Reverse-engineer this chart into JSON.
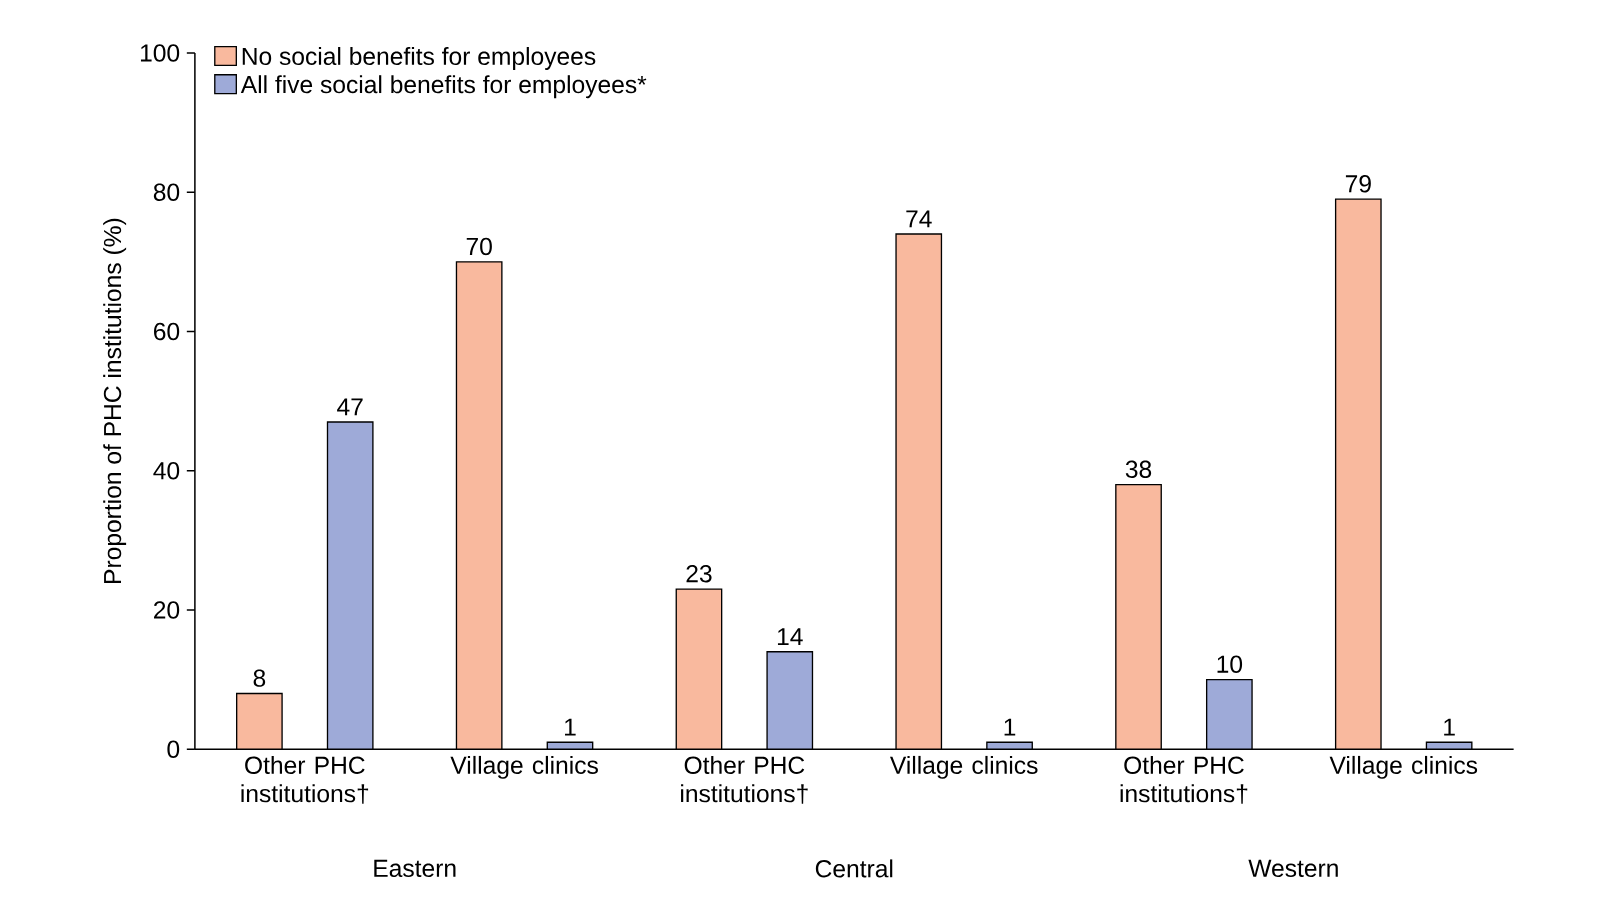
{
  "chart_data": {
    "type": "bar",
    "ylabel": "Proportion of PHC institutions (%)",
    "categories": [
      "Other PHC institutions†",
      "Village clinics",
      "Other PHC institutions†",
      "Village clinics",
      "Other PHC institutions†",
      "Village clinics"
    ],
    "series": [
      {
        "name": "No social benefits for employees",
        "color": "#f9b99e",
        "values": [
          8,
          70,
          23,
          74,
          38,
          79
        ]
      },
      {
        "name": "All five social benefits for employees*",
        "color": "#9eaad8",
        "values": [
          47,
          1,
          14,
          1,
          10,
          1
        ]
      }
    ],
    "annotations": [
      "Eastern",
      "Central",
      "Western"
    ],
    "ylim": [
      0,
      100
    ],
    "yticks": [
      0,
      20,
      40,
      60,
      80,
      100
    ],
    "data_labels": true,
    "grid": false,
    "legend": "top left"
  }
}
